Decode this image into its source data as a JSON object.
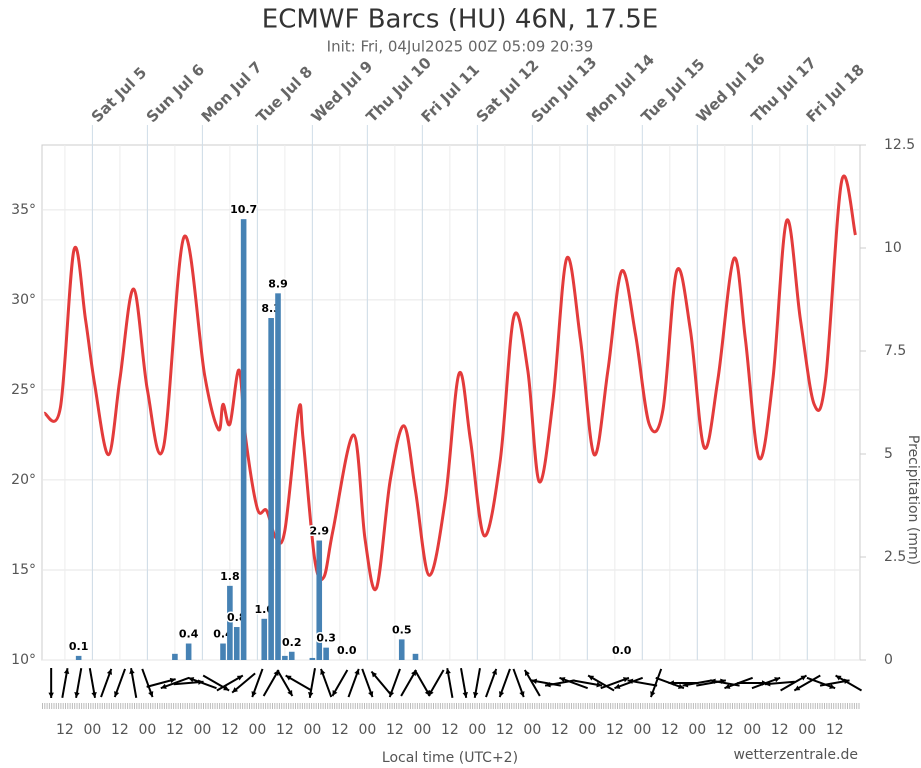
{
  "chart_data": {
    "type": "meteogram",
    "title": "ECMWF Barcs (HU) 46N, 17.5E",
    "subtitle": "Init: Fri, 04Jul2025 00Z 05:09 20:39",
    "x_label": "Local time (UTC+2)",
    "y2_label": "Precipitation (mm)",
    "credit": "wetterzentrale.de",
    "xlim": [
      2,
      359
    ],
    "xticks": [
      {
        "value": 12,
        "label": "12"
      },
      {
        "value": 24,
        "label": "00"
      },
      {
        "value": 36,
        "label": "12"
      },
      {
        "value": 48,
        "label": "00"
      },
      {
        "value": 60,
        "label": "12"
      },
      {
        "value": 72,
        "label": "00"
      },
      {
        "value": 84,
        "label": "12"
      },
      {
        "value": 96,
        "label": "00"
      },
      {
        "value": 108,
        "label": "12"
      },
      {
        "value": 120,
        "label": "00"
      },
      {
        "value": 132,
        "label": "12"
      },
      {
        "value": 144,
        "label": "00"
      },
      {
        "value": 156,
        "label": "12"
      },
      {
        "value": 168,
        "label": "00"
      },
      {
        "value": 180,
        "label": "12"
      },
      {
        "value": 192,
        "label": "00"
      },
      {
        "value": 204,
        "label": "12"
      },
      {
        "value": 216,
        "label": "00"
      },
      {
        "value": 228,
        "label": "12"
      },
      {
        "value": 240,
        "label": "00"
      },
      {
        "value": 252,
        "label": "12"
      },
      {
        "value": 264,
        "label": "00"
      },
      {
        "value": 276,
        "label": "12"
      },
      {
        "value": 288,
        "label": "00"
      },
      {
        "value": 300,
        "label": "12"
      },
      {
        "value": 312,
        "label": "00"
      },
      {
        "value": 324,
        "label": "12"
      },
      {
        "value": 336,
        "label": "00"
      },
      {
        "value": 348,
        "label": "12"
      }
    ],
    "x2ticks": [
      {
        "value": 24,
        "label": "Sat Jul 5"
      },
      {
        "value": 48,
        "label": "Sun Jul 6"
      },
      {
        "value": 72,
        "label": "Mon Jul 7"
      },
      {
        "value": 96,
        "label": "Tue Jul 8"
      },
      {
        "value": 120,
        "label": "Wed Jul 9"
      },
      {
        "value": 144,
        "label": "Thu Jul 10"
      },
      {
        "value": 168,
        "label": "Fri Jul 11"
      },
      {
        "value": 192,
        "label": "Sat Jul 12"
      },
      {
        "value": 216,
        "label": "Sun Jul 13"
      },
      {
        "value": 240,
        "label": "Mon Jul 14"
      },
      {
        "value": 264,
        "label": "Tue Jul 15"
      },
      {
        "value": 288,
        "label": "Wed Jul 16"
      },
      {
        "value": 312,
        "label": "Thu Jul 17"
      },
      {
        "value": 336,
        "label": "Fri Jul 18"
      }
    ],
    "ylim": [
      10,
      38.6
    ],
    "yticks": [
      {
        "value": 10,
        "label": "10°"
      },
      {
        "value": 15,
        "label": "15°"
      },
      {
        "value": 20,
        "label": "20°"
      },
      {
        "value": 25,
        "label": "25°"
      },
      {
        "value": 30,
        "label": "30°"
      },
      {
        "value": 35,
        "label": "35°"
      }
    ],
    "y2lim": [
      0,
      12.5
    ],
    "y2ticks": [
      0,
      2.5,
      5,
      7.5,
      10,
      12.5
    ],
    "grid": true,
    "series": [
      {
        "name": "Temperature",
        "type": "line",
        "color": "#e33b3b",
        "x": [
          3,
          10,
          16,
          21,
          25,
          31,
          36,
          42,
          48,
          55,
          64,
          73,
          79,
          81,
          84,
          88,
          91,
          96,
          100,
          104,
          108,
          114,
          116,
          121,
          125,
          129,
          138,
          143,
          148,
          154,
          160,
          165,
          171,
          178,
          184,
          189,
          195,
          202,
          208,
          214,
          219,
          225,
          231,
          237,
          243,
          249,
          255,
          261,
          267,
          273,
          279,
          285,
          291,
          297,
          304,
          309,
          315,
          321,
          327,
          333,
          339,
          344,
          351,
          357
        ],
        "values": [
          23.7,
          24.0,
          32.8,
          28.9,
          25.3,
          21.4,
          25.6,
          30.6,
          25.0,
          21.8,
          33.5,
          25.8,
          22.8,
          24.2,
          23.1,
          26.1,
          22.2,
          18.4,
          18.3,
          16.8,
          17.2,
          23.9,
          22.2,
          15.6,
          14.6,
          17.2,
          22.5,
          16.7,
          14.0,
          20.0,
          23.0,
          19.4,
          14.7,
          18.9,
          25.9,
          22.2,
          16.9,
          21.1,
          29.1,
          26.1,
          19.9,
          24.4,
          32.3,
          27.8,
          21.4,
          26.1,
          31.6,
          28.1,
          23.1,
          23.9,
          31.6,
          28.3,
          21.8,
          25.6,
          32.3,
          27.8,
          21.2,
          25.6,
          34.4,
          28.9,
          24.2,
          25.6,
          36.6,
          33.6
        ]
      },
      {
        "name": "Precipitation",
        "type": "bar",
        "axis": "y2",
        "color": "#4682b4",
        "x": [
          18,
          60,
          66,
          81,
          84,
          87,
          90,
          99,
          102,
          105,
          108,
          111,
          120,
          123,
          126,
          135,
          159,
          165,
          255
        ],
        "values": [
          0.1,
          0.15,
          0.4,
          0.4,
          1.8,
          0.8,
          10.7,
          1.0,
          8.3,
          8.9,
          0.1,
          0.2,
          0.05,
          2.9,
          0.3,
          0,
          0.5,
          0.15,
          0
        ],
        "value_labels": [
          "0.1",
          null,
          "0.4",
          "0.4",
          "1.8",
          "0.8",
          "10.7",
          "1.0",
          "8.3",
          "8.9",
          null,
          "0.2",
          null,
          "2.9",
          "0.3",
          "0.0",
          "0.5",
          null,
          "0.0"
        ]
      }
    ],
    "wind": {
      "color": "#000",
      "x": [
        6,
        12,
        18,
        24,
        30,
        36,
        42,
        48,
        54,
        60,
        66,
        72,
        78,
        84,
        90,
        96,
        102,
        108,
        114,
        120,
        126,
        132,
        138,
        144,
        150,
        156,
        162,
        168,
        174,
        180,
        186,
        192,
        198,
        204,
        210,
        216,
        222,
        228,
        234,
        240,
        246,
        252,
        258,
        264,
        270,
        276,
        282,
        288,
        294,
        300,
        306,
        312,
        318,
        324,
        330,
        336,
        342,
        348,
        354
      ],
      "directions": [
        180,
        10,
        190,
        170,
        20,
        200,
        350,
        160,
        75,
        250,
        85,
        290,
        120,
        60,
        230,
        200,
        30,
        150,
        300,
        190,
        340,
        210,
        20,
        160,
        320,
        200,
        30,
        150,
        210,
        350,
        170,
        190,
        20,
        200,
        160,
        330,
        280,
        260,
        290,
        100,
        300,
        70,
        250,
        280,
        200,
        110,
        270,
        260,
        80,
        280,
        250,
        90,
        70,
        265,
        60,
        240,
        110,
        80,
        300
      ]
    }
  }
}
